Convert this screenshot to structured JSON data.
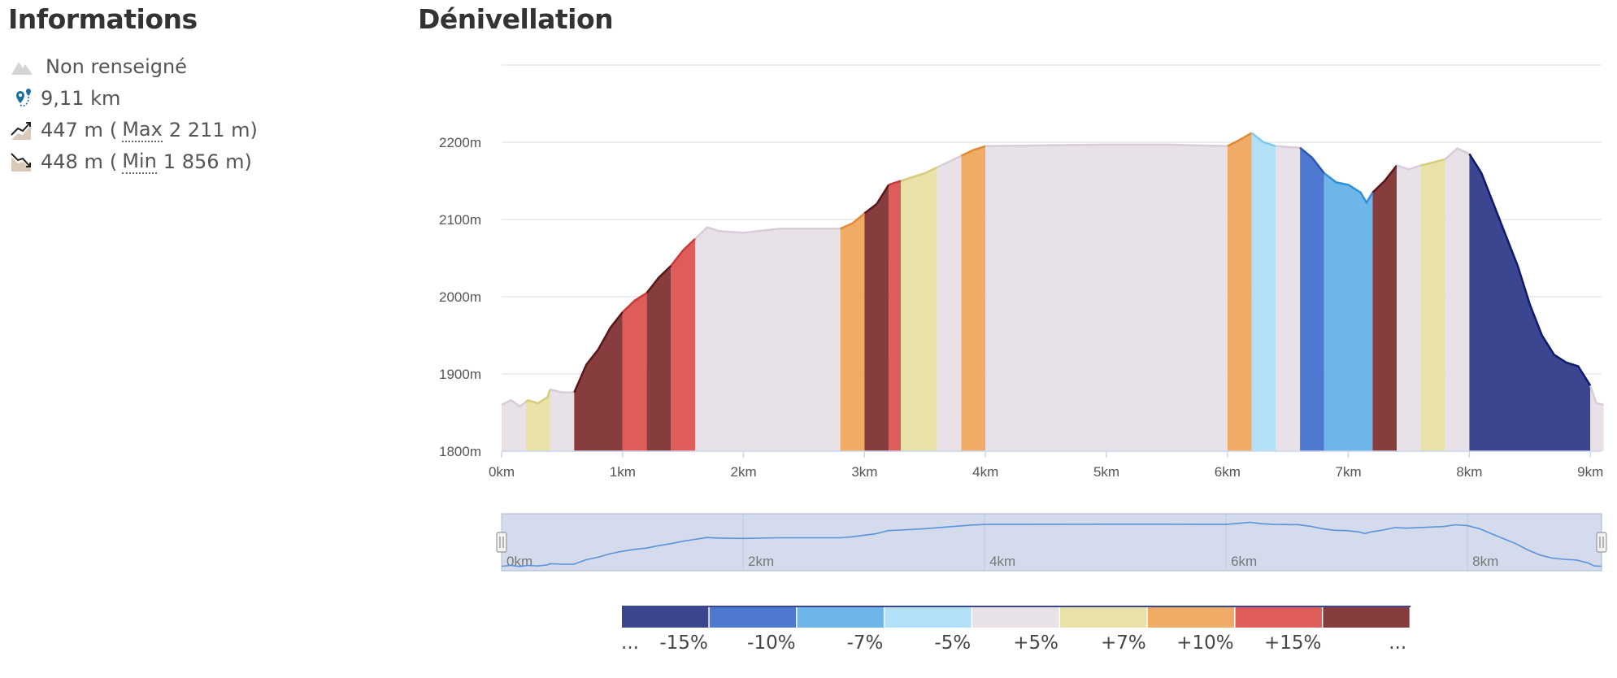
{
  "info": {
    "title": "Informations",
    "difficulty": "Non renseigné",
    "distance": "9,11 km",
    "ascent": "447 m",
    "ascent_max_label": "Max",
    "ascent_max_value": "2 211 m",
    "descent": "448 m",
    "descent_min_label": "Min",
    "descent_min_value": "1 856 m",
    "open_paren": "(",
    "close_paren": ")"
  },
  "chart_title": "Dénivellation",
  "chart_data": {
    "type": "area",
    "x_unit": "km",
    "y_unit": "m",
    "xlim": [
      0,
      9.1
    ],
    "ylim": [
      1800,
      2300
    ],
    "x_ticks": [
      0,
      1,
      2,
      3,
      4,
      5,
      6,
      7,
      8,
      9
    ],
    "x_tick_labels": [
      "0km",
      "1km",
      "2km",
      "3km",
      "4km",
      "5km",
      "6km",
      "7km",
      "8km",
      "9km"
    ],
    "y_ticks": [
      1800,
      1900,
      2000,
      2100,
      2200
    ],
    "y_tick_labels": [
      "1800m",
      "1900m",
      "2000m",
      "2100m",
      "2200m"
    ],
    "grid": true,
    "profile": [
      [
        0,
        1860
      ],
      [
        0.08,
        1866
      ],
      [
        0.15,
        1858
      ],
      [
        0.22,
        1866
      ],
      [
        0.3,
        1862
      ],
      [
        0.38,
        1870
      ],
      [
        0.4,
        1880
      ],
      [
        0.5,
        1876
      ],
      [
        0.6,
        1876
      ],
      [
        0.7,
        1912
      ],
      [
        0.8,
        1932
      ],
      [
        0.9,
        1960
      ],
      [
        1.0,
        1980
      ],
      [
        1.1,
        1995
      ],
      [
        1.2,
        2005
      ],
      [
        1.3,
        2025
      ],
      [
        1.4,
        2040
      ],
      [
        1.5,
        2060
      ],
      [
        1.6,
        2075
      ],
      [
        1.7,
        2090
      ],
      [
        1.8,
        2085
      ],
      [
        2.0,
        2083
      ],
      [
        2.3,
        2088
      ],
      [
        2.6,
        2088
      ],
      [
        2.8,
        2088
      ],
      [
        2.9,
        2095
      ],
      [
        3.0,
        2108
      ],
      [
        3.1,
        2120
      ],
      [
        3.2,
        2145
      ],
      [
        3.3,
        2150
      ],
      [
        3.5,
        2160
      ],
      [
        3.7,
        2175
      ],
      [
        3.9,
        2190
      ],
      [
        4.0,
        2195
      ],
      [
        4.5,
        2196
      ],
      [
        5.0,
        2197
      ],
      [
        5.5,
        2197
      ],
      [
        6.0,
        2195
      ],
      [
        6.1,
        2203
      ],
      [
        6.2,
        2212
      ],
      [
        6.3,
        2200
      ],
      [
        6.4,
        2195
      ],
      [
        6.6,
        2193
      ],
      [
        6.7,
        2180
      ],
      [
        6.8,
        2160
      ],
      [
        6.9,
        2148
      ],
      [
        7.0,
        2145
      ],
      [
        7.1,
        2135
      ],
      [
        7.15,
        2122
      ],
      [
        7.2,
        2135
      ],
      [
        7.3,
        2150
      ],
      [
        7.4,
        2170
      ],
      [
        7.5,
        2165
      ],
      [
        7.6,
        2170
      ],
      [
        7.8,
        2178
      ],
      [
        7.9,
        2192
      ],
      [
        8.0,
        2185
      ],
      [
        8.1,
        2160
      ],
      [
        8.2,
        2120
      ],
      [
        8.3,
        2080
      ],
      [
        8.4,
        2040
      ],
      [
        8.5,
        1990
      ],
      [
        8.6,
        1950
      ],
      [
        8.7,
        1925
      ],
      [
        8.8,
        1915
      ],
      [
        8.9,
        1910
      ],
      [
        9.0,
        1885
      ],
      [
        9.05,
        1862
      ],
      [
        9.11,
        1860
      ]
    ],
    "slope_segments": [
      {
        "from": 0,
        "to": 0.2,
        "slope": "flat"
      },
      {
        "from": 0.2,
        "to": 0.4,
        "slope": "+5%"
      },
      {
        "from": 0.4,
        "to": 0.6,
        "slope": "flat"
      },
      {
        "from": 0.6,
        "to": 1.0,
        "slope": "+15%"
      },
      {
        "from": 1.0,
        "to": 1.2,
        "slope": "+10%"
      },
      {
        "from": 1.2,
        "to": 1.4,
        "slope": "+15%"
      },
      {
        "from": 1.4,
        "to": 1.6,
        "slope": "+10%"
      },
      {
        "from": 1.6,
        "to": 2.8,
        "slope": "flat"
      },
      {
        "from": 2.8,
        "to": 3.0,
        "slope": "+7%"
      },
      {
        "from": 3.0,
        "to": 3.2,
        "slope": "+15%"
      },
      {
        "from": 3.2,
        "to": 3.3,
        "slope": "+10%"
      },
      {
        "from": 3.3,
        "to": 3.6,
        "slope": "+5%"
      },
      {
        "from": 3.6,
        "to": 3.8,
        "slope": "flat"
      },
      {
        "from": 3.8,
        "to": 4.0,
        "slope": "+7%"
      },
      {
        "from": 4.0,
        "to": 6.0,
        "slope": "flat"
      },
      {
        "from": 6.0,
        "to": 6.2,
        "slope": "+7%"
      },
      {
        "from": 6.2,
        "to": 6.4,
        "slope": "-5%"
      },
      {
        "from": 6.4,
        "to": 6.6,
        "slope": "flat"
      },
      {
        "from": 6.6,
        "to": 6.8,
        "slope": "-10%"
      },
      {
        "from": 6.8,
        "to": 7.2,
        "slope": "-7%"
      },
      {
        "from": 7.2,
        "to": 7.4,
        "slope": "+15%"
      },
      {
        "from": 7.4,
        "to": 7.6,
        "slope": "flat"
      },
      {
        "from": 7.6,
        "to": 7.8,
        "slope": "+5%"
      },
      {
        "from": 7.8,
        "to": 8.0,
        "slope": "flat"
      },
      {
        "from": 8.0,
        "to": 9.0,
        "slope": "-15%"
      },
      {
        "from": 9.0,
        "to": 9.11,
        "slope": "flat"
      }
    ],
    "slope_colors": {
      "-15%": "#3c4590",
      "-10%": "#4f79d1",
      "-7%": "#6db6ea",
      "-5%": "#b1e0f8",
      "flat": "#e8e2e8",
      "+5%": "#e8e1a8",
      "+7%": "#f0ab66",
      "+10%": "#de5d5a",
      "+15%": "#873c3e"
    },
    "slope_line_colors": {
      "-15%": "#0e1a6e",
      "-10%": "#2855b8",
      "-7%": "#2f8fd8",
      "-5%": "#80c8f0",
      "flat": "#d8ccd8",
      "+5%": "#d8cc7a",
      "+7%": "#e08a34",
      "+10%": "#c83a36",
      "+15%": "#5a1618"
    },
    "navigator": {
      "range": [
        0,
        9.11
      ],
      "x_ticks": [
        0,
        2,
        4,
        6,
        8
      ],
      "x_tick_labels": [
        "0km",
        "2km",
        "4km",
        "6km",
        "8km"
      ]
    },
    "legend": {
      "placement": "bottom",
      "order": [
        "-15%",
        "-10%",
        "-7%",
        "-5%",
        "flat",
        "+5%",
        "+7%",
        "+10%",
        "+15%"
      ],
      "labels": [
        "...",
        "-15%",
        "-10%",
        "-7%",
        "-5%",
        "+5%",
        "+7%",
        "+10%",
        "+15%",
        "..."
      ]
    }
  }
}
